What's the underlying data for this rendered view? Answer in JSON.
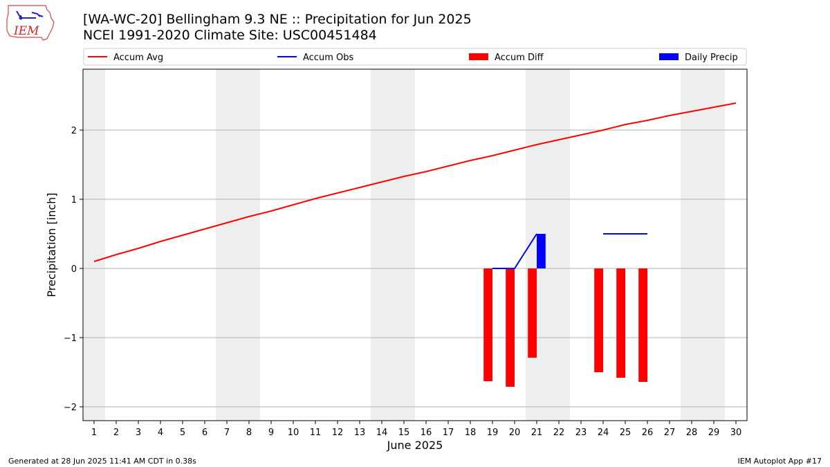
{
  "header": {
    "title_line1": "[WA-WC-20] Bellingham 9.3 NE :: Precipitation for Jun 2025",
    "title_line2": "NCEI 1991-2020 Climate Site: USC00451484",
    "logo_text": "IEM"
  },
  "footer": {
    "left": "Generated at 28 Jun 2025 11:41 AM CDT in 0.38s",
    "right": "IEM Autoplot App #17"
  },
  "chart_data": {
    "type": "line",
    "xlabel": "June 2025",
    "ylabel": "Precipitation [inch]",
    "xlim": [
      0.5,
      30.5
    ],
    "ylim": [
      -2.2,
      2.88
    ],
    "x_ticks": [
      1,
      2,
      3,
      4,
      5,
      6,
      7,
      8,
      9,
      10,
      11,
      12,
      13,
      14,
      15,
      16,
      17,
      18,
      19,
      20,
      21,
      22,
      23,
      24,
      25,
      26,
      27,
      28,
      29,
      30
    ],
    "y_ticks": [
      -2,
      -1,
      0,
      1,
      2
    ],
    "y_tick_labels": [
      "−2",
      "−1",
      "0",
      "1",
      "2"
    ],
    "grid": "horizontal",
    "legend_position": "top",
    "weekend_bands": [
      [
        0.5,
        1.5
      ],
      [
        6.5,
        8.5
      ],
      [
        13.5,
        15.5
      ],
      [
        20.5,
        22.5
      ],
      [
        27.5,
        29.5
      ]
    ],
    "colors": {
      "avg": "#ff0000",
      "obs": "#0000ff",
      "diff": "#ff0000",
      "daily": "#0000ff",
      "band": "#eeeeee"
    },
    "legend": [
      "Accum Avg",
      "Accum Obs",
      "Accum Diff",
      "Daily Precip"
    ],
    "accum_avg": {
      "x": [
        1,
        2,
        3,
        4,
        5,
        6,
        7,
        8,
        9,
        10,
        11,
        12,
        13,
        14,
        15,
        16,
        17,
        18,
        19,
        20,
        21,
        22,
        23,
        24,
        25,
        26,
        27,
        28,
        29,
        30
      ],
      "values": [
        0.1,
        0.2,
        0.29,
        0.39,
        0.48,
        0.57,
        0.66,
        0.75,
        0.83,
        0.92,
        1.01,
        1.09,
        1.17,
        1.25,
        1.33,
        1.4,
        1.48,
        1.56,
        1.63,
        1.71,
        1.79,
        1.86,
        1.93,
        2.0,
        2.08,
        2.14,
        2.21,
        2.27,
        2.33,
        2.39
      ]
    },
    "accum_obs_segments": [
      {
        "x": [
          19,
          20,
          21
        ],
        "values": [
          0.0,
          0.0,
          0.5
        ]
      },
      {
        "x": [
          24,
          25,
          26
        ],
        "values": [
          0.5,
          0.5,
          0.5
        ]
      }
    ],
    "accum_diff": {
      "x": [
        19,
        20,
        21,
        24,
        25,
        26
      ],
      "values": [
        -1.63,
        -1.71,
        -1.29,
        -1.5,
        -1.58,
        -1.64
      ]
    },
    "daily_precip": {
      "x": [
        21
      ],
      "values": [
        0.5
      ]
    }
  }
}
